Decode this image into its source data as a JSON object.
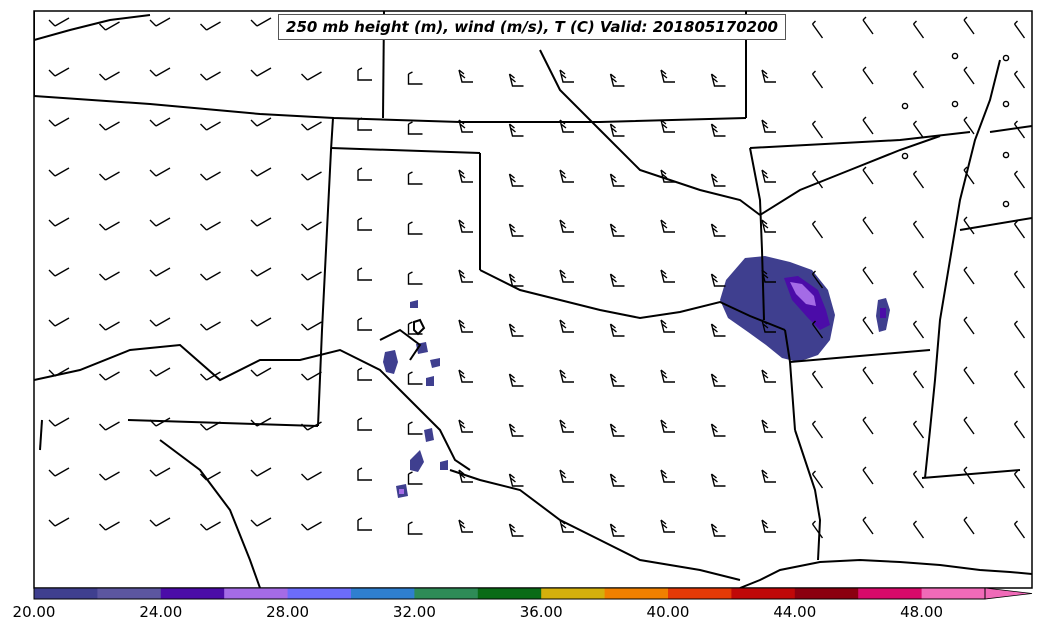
{
  "title": "250 mb height (m), wind (m/s), T (C) Valid: 201805170200",
  "colorbar": {
    "labels": [
      "20.00",
      "24.00",
      "28.00",
      "32.00",
      "36.00",
      "40.00",
      "44.00",
      "48.00"
    ],
    "colors": [
      "#3f3f8f",
      "#5c56a0",
      "#4b0ca8",
      "#a46be6",
      "#6c6cfa",
      "#2f7fcf",
      "#2e8b57",
      "#0a6b16",
      "#d4b00c",
      "#f08000",
      "#e53a06",
      "#c00808",
      "#8b0010",
      "#d80a6a",
      "#f06ab8"
    ],
    "extend": "max"
  },
  "shading": {
    "base_color": "#3f3f8f",
    "inner_color": "#4b0ca8",
    "highlight_color": "#a46be6"
  }
}
